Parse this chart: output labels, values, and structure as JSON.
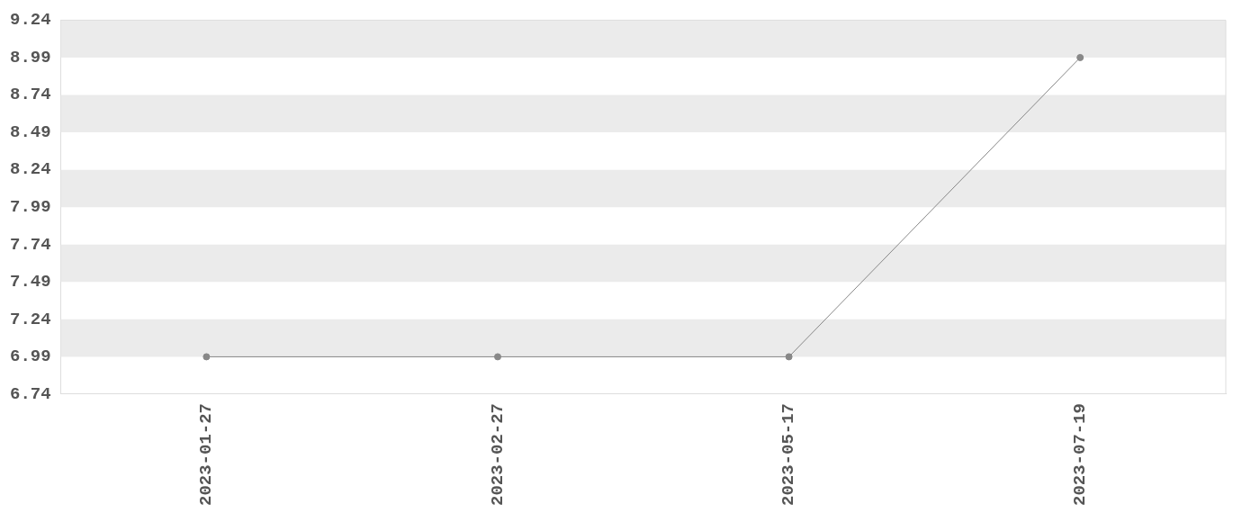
{
  "chart_data": {
    "type": "line",
    "categories": [
      "2023-01-27",
      "2023-02-27",
      "2023-05-17",
      "2023-07-19"
    ],
    "series": [
      {
        "color": "#888888",
        "values": [
          6.99,
          6.99,
          6.99,
          8.99
        ]
      }
    ],
    "ylim": [
      6.74,
      9.24
    ],
    "yticks": [
      6.74,
      6.99,
      7.24,
      7.49,
      7.74,
      7.99,
      8.24,
      8.49,
      8.74,
      8.99,
      9.24
    ],
    "bands": [
      {
        "axis": "y",
        "from": 6.99,
        "to": 7.24,
        "color": "#ebebeb"
      },
      {
        "axis": "y",
        "from": 7.49,
        "to": 7.74,
        "color": "#ebebeb"
      },
      {
        "axis": "y",
        "from": 7.99,
        "to": 8.24,
        "color": "#ebebeb"
      },
      {
        "axis": "y",
        "from": 8.49,
        "to": 8.74,
        "color": "#ebebeb"
      },
      {
        "axis": "y",
        "from": 8.99,
        "to": 9.24,
        "color": "#ebebeb"
      }
    ],
    "legend": false,
    "marker": "circle",
    "line_style": "solid"
  }
}
